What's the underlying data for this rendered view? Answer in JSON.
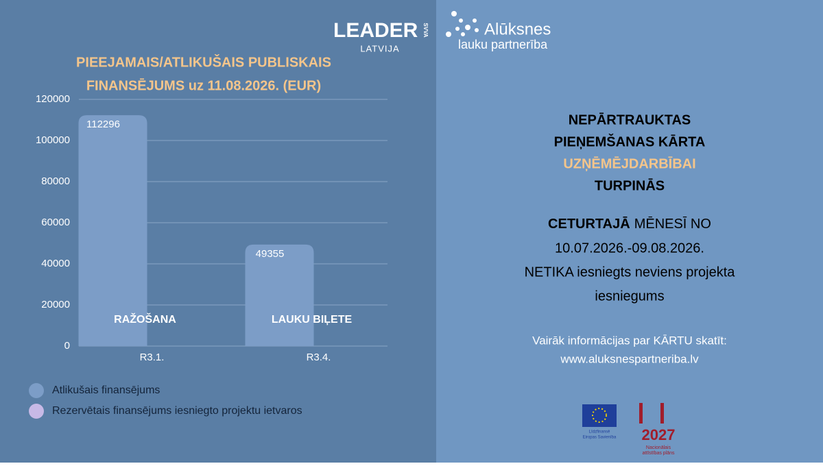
{
  "logos": {
    "leader": "LEADER",
    "svva": "SVVA",
    "latvija": "LATVIJA",
    "aluksnes": "Alūksnes",
    "partneriba": "lauku partnerība",
    "eu": [
      "Līdzfinansē",
      "Eiropas Savienība"
    ],
    "nap_year": "2027",
    "nap": [
      "Nacionālais",
      "attīstības plāns"
    ]
  },
  "chart_data": {
    "type": "bar",
    "title": [
      "PIEEJAMAIS/ATLIKUŠAIS PUBLISKAIS",
      "FINANSĒJUMS uz 11.08.2026. (EUR)"
    ],
    "categories": [
      "R3.1.",
      "R3.4."
    ],
    "bar_annotations": [
      "RAŽOŠANA",
      "LAUKU BIĻETE"
    ],
    "series": [
      {
        "name": "Atlikušais finansējums",
        "color": "#7c9dc7",
        "values": [
          112296,
          49355
        ]
      },
      {
        "name": "Rezervētais finansējums iesniegto projektu ietvaros",
        "color": "#c7b9e6",
        "values": [
          0,
          0
        ]
      }
    ],
    "ylim": [
      0,
      120000
    ],
    "yticks": [
      0,
      20000,
      40000,
      60000,
      80000,
      100000,
      120000
    ],
    "grid": true
  },
  "panel": {
    "heading": [
      "NEPĀRTRAUKTAS",
      "PIEŅEMŠANAS KĀRTA",
      "UZŅĒMĒJDARBĪBAI",
      "TURPINĀS"
    ],
    "period_bold": "CETURTAJĀ",
    "period_rest": "MĒNESĪ NO",
    "period_dates": "10.07.2026.-09.08.2026.",
    "notice": [
      "NETIKA iesniegts neviens projekta",
      "iesniegums"
    ],
    "more_info": [
      "Vairāk informācijas par KĀRTU skatīt:",
      "www.aluksnespartneriba.lv"
    ]
  }
}
